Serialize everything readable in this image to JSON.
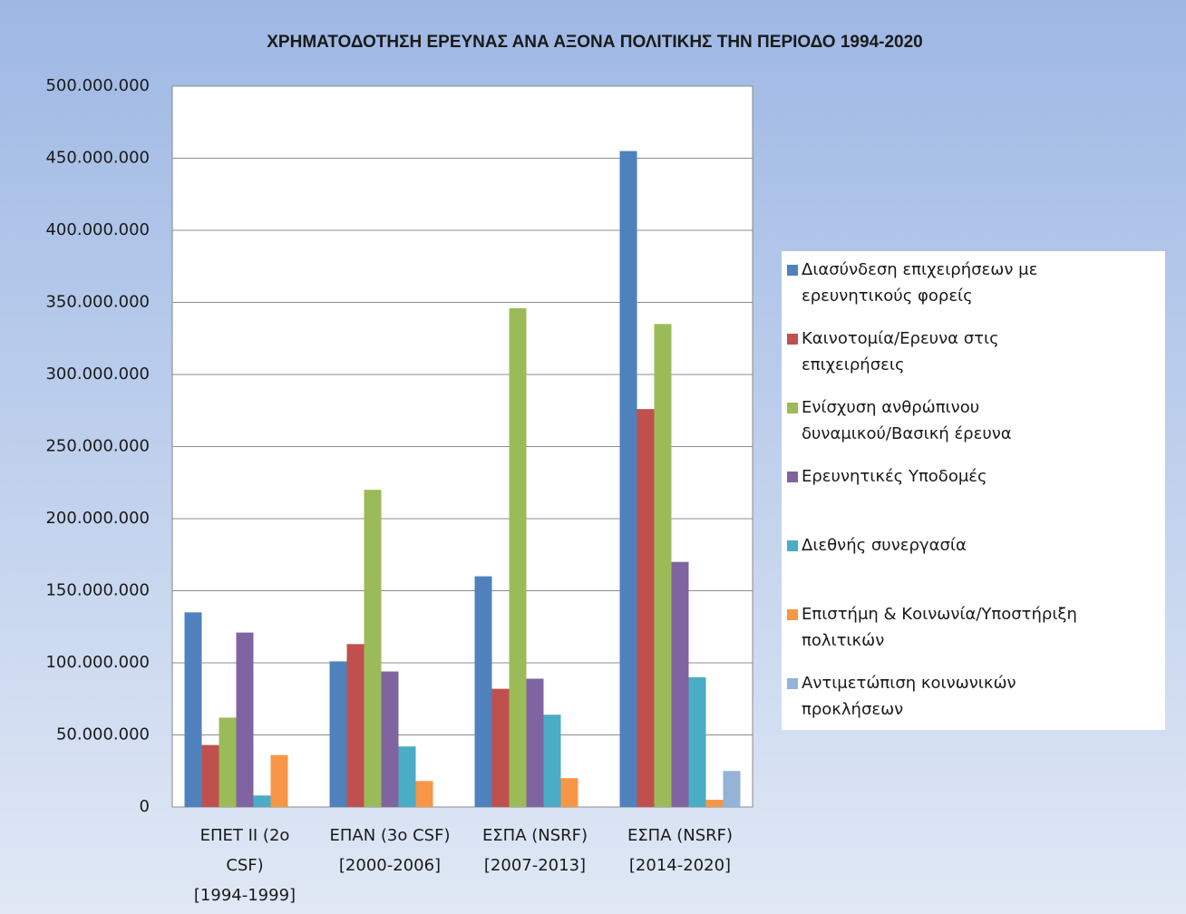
{
  "chart_data": {
    "type": "bar",
    "title": "ΧΡΗΜΑΤΟΔΟΤΗΣΗ ΕΡΕΥΝΑΣ ΑΝΑ ΑΞΟΝΑ ΠΟΛΙΤΙΚΗΣ ΤΗΝ ΠΕΡΙΟΔΟ 1994-2020",
    "categories": [
      "ΕΠΕΤ ΙΙ (2ο CSF) [1994-1999]",
      "ΕΠΑΝ (3ο CSF) [2000-2006]",
      "ΕΣΠΑ (NSRF) [2007-2013]",
      "ΕΣΠΑ (NSRF) [2014-2020]"
    ],
    "series": [
      {
        "name": "Διασύνδεση επιχειρήσεων με ερευνητικούς φορείς",
        "color": "#4f81bd",
        "values": [
          135000000,
          101000000,
          160000000,
          455000000
        ]
      },
      {
        "name": "Καινοτομία/Ερευνα στις επιχειρήσεις",
        "color": "#c0504d",
        "values": [
          43000000,
          113000000,
          82000000,
          276000000
        ]
      },
      {
        "name": "Ενίσχυση ανθρώπινου δυναμικού/Βασική έρευνα",
        "color": "#9bbb59",
        "values": [
          62000000,
          220000000,
          346000000,
          335000000
        ]
      },
      {
        "name": "Ερευνητικές Υποδομές",
        "color": "#8064a2",
        "values": [
          121000000,
          94000000,
          89000000,
          170000000
        ]
      },
      {
        "name": "Διεθνής συνεργασία",
        "color": "#4bacc6",
        "values": [
          8000000,
          42000000,
          64000000,
          90000000
        ]
      },
      {
        "name": "Επιστήμη & Κοινωνία/Υποστήριξη πολιτικών",
        "color": "#f79646",
        "values": [
          36000000,
          18000000,
          20000000,
          5000000
        ]
      },
      {
        "name": "Αντιμετώπιση κοινωνικών προκλήσεων",
        "color": "#95b3d7",
        "values": [
          null,
          null,
          null,
          25000000
        ]
      }
    ],
    "ylim": [
      0,
      500000000
    ],
    "yticks": [
      0,
      {
        "value": 50000000,
        "label": "50.000.000"
      },
      {
        "value": 100000000,
        "label": "100.000.000"
      },
      {
        "value": 150000000,
        "label": "150.000.000"
      },
      {
        "value": 200000000,
        "label": "200.000.000"
      },
      {
        "value": 250000000,
        "label": "250.000.000"
      },
      {
        "value": 300000000,
        "label": "300.000.000"
      },
      {
        "value": 350000000,
        "label": "350.000.000"
      },
      {
        "value": 400000000,
        "label": "400.000.000"
      },
      {
        "value": 450000000,
        "label": "450.000.000"
      },
      {
        "value": 500000000,
        "label": "500.000.000"
      }
    ],
    "grid": true,
    "legend": "right"
  }
}
